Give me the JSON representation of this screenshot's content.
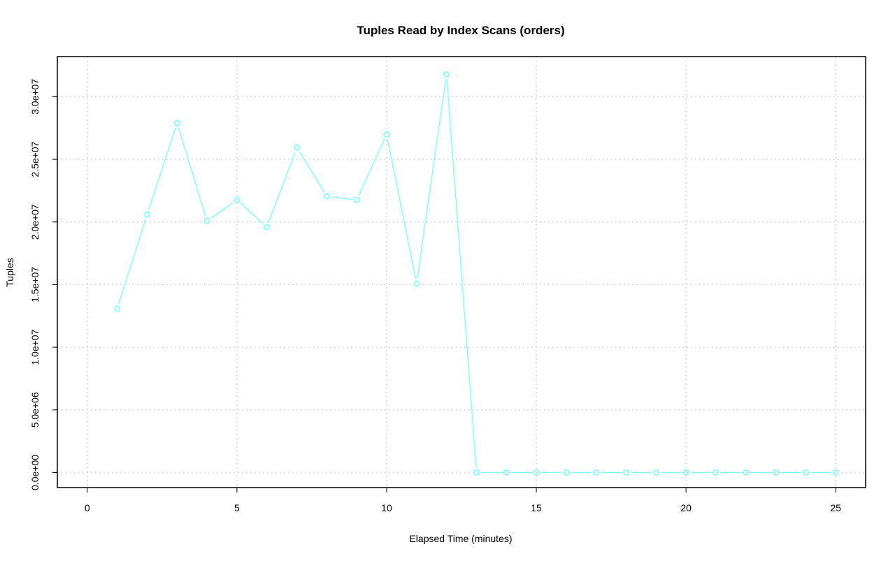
{
  "chart_data": {
    "type": "line",
    "title": "Tuples Read by Index Scans (orders)",
    "xlabel": "Elapsed Time (minutes)",
    "ylabel": "Tuples",
    "xlim": [
      -1,
      26
    ],
    "ylim": [
      -1200000,
      33200000
    ],
    "x_ticks": [
      0,
      5,
      10,
      15,
      20,
      25
    ],
    "x_tick_labels": [
      "0",
      "5",
      "10",
      "15",
      "20",
      "25"
    ],
    "y_ticks": [
      0,
      5000000,
      10000000,
      15000000,
      20000000,
      25000000,
      30000000
    ],
    "y_tick_labels": [
      "0.0e+00",
      "5.0e+06",
      "1.0e+07",
      "1.5e+07",
      "2.0e+07",
      "2.5e+07",
      "3.0e+07"
    ],
    "grid": true,
    "line_color": "#80ffff",
    "series": [
      {
        "x": [
          1,
          2,
          3,
          4,
          5,
          6,
          7,
          8,
          9,
          10,
          11,
          12,
          13,
          14,
          15,
          16,
          17,
          18,
          19,
          20,
          21,
          22,
          23,
          24,
          25
        ],
        "values": [
          13080000,
          20590000,
          27880000,
          20090000,
          21760000,
          19590000,
          25940000,
          22040000,
          21760000,
          26990000,
          15080000,
          31780000,
          0,
          0,
          0,
          0,
          0,
          0,
          0,
          0,
          0,
          0,
          0,
          0,
          0
        ]
      }
    ]
  }
}
